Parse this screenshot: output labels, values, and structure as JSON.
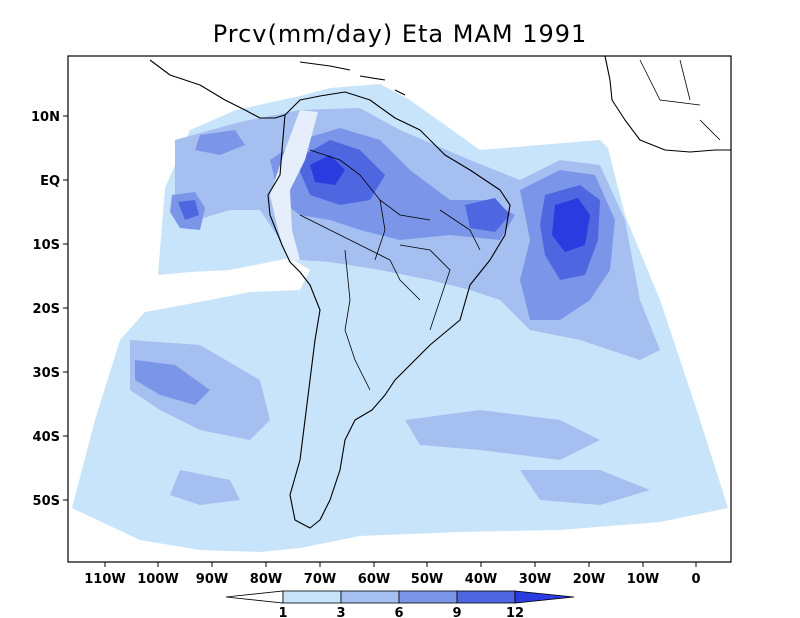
{
  "title": "Prcv(mm/day) Eta MAM 1991",
  "map": {
    "variable": "Prcv",
    "units": "mm/day",
    "model": "Eta",
    "season": "MAM",
    "year": "1991",
    "lon_labels": [
      "110W",
      "100W",
      "90W",
      "80W",
      "70W",
      "60W",
      "50W",
      "40W",
      "30W",
      "20W",
      "10W",
      "0"
    ],
    "lat_labels": [
      "10N",
      "EQ",
      "10S",
      "20S",
      "30S",
      "40S",
      "50S"
    ]
  },
  "colorbar": {
    "labels": [
      "1",
      "3",
      "6",
      "9",
      "12"
    ],
    "colors": [
      "#ffffff",
      "#c8e4fb",
      "#a5bff1",
      "#7b96e9",
      "#4f66e1",
      "#2a3bdf"
    ]
  },
  "colors": {
    "level_1": "#c8e4fb",
    "level_3": "#a5bff1",
    "level_6": "#7b96e9",
    "level_9": "#4f66e1",
    "level_12": "#2a3bdf"
  }
}
